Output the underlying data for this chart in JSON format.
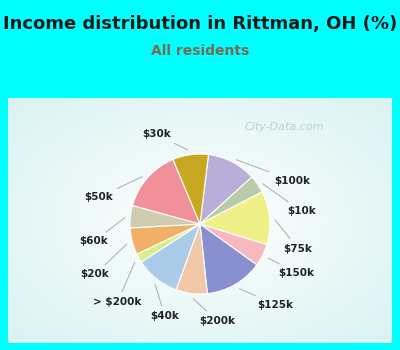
{
  "title": "Income distribution in Rittman, OH (%)",
  "subtitle": "All residents",
  "title_color": "#1a1a1a",
  "subtitle_color": "#7a6a50",
  "background_color": "#00ffff",
  "watermark": "City-Data.com",
  "labels": [
    "$100k",
    "$10k",
    "$75k",
    "$150k",
    "$125k",
    "$200k",
    "$40k",
    "> $200k",
    "$20k",
    "$60k",
    "$50k",
    "$30k"
  ],
  "values": [
    11,
    4,
    12,
    5,
    13,
    7,
    10,
    2,
    6,
    5,
    14,
    8
  ],
  "colors": [
    "#b8aed8",
    "#b8ccaa",
    "#f0f088",
    "#f8b8c0",
    "#8890d0",
    "#f0c8a8",
    "#aacce8",
    "#d8ec90",
    "#f0b068",
    "#d0ccb0",
    "#f09098",
    "#c8a820"
  ],
  "label_fontsize": 7.5,
  "title_fontsize": 13,
  "subtitle_fontsize": 10,
  "startangle": 83
}
